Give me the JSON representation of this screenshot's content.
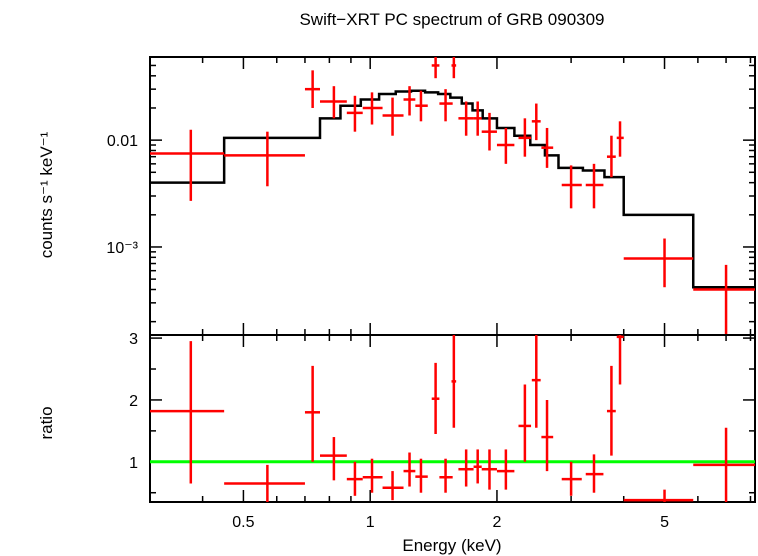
{
  "title": "Swift−XRT PC spectrum of GRB 090309",
  "chart_data": [
    {
      "type": "scatter",
      "panel": "spectrum",
      "ylabel": "counts s⁻¹ keV⁻¹",
      "yscale": "log",
      "xscale": "log",
      "xlim": [
        0.3,
        8.2
      ],
      "ylim": [
        0.00015,
        0.06
      ],
      "yticks": [
        {
          "value": 0.01,
          "label": "0.01"
        },
        {
          "value": 0.001,
          "label": "10⁻³"
        }
      ],
      "colors": {
        "data": "#ff0000",
        "model": "#000000"
      },
      "series": [
        {
          "points": [
            {
              "x": 0.375,
              "xlo": 0.3,
              "xhi": 0.45,
              "y": 0.0075,
              "ylo": 0.0027,
              "yhi": 0.0125
            },
            {
              "x": 0.57,
              "xlo": 0.45,
              "xhi": 0.7,
              "y": 0.0072,
              "ylo": 0.0037,
              "yhi": 0.012
            },
            {
              "x": 0.73,
              "xlo": 0.7,
              "xhi": 0.76,
              "y": 0.03,
              "ylo": 0.02,
              "yhi": 0.045
            },
            {
              "x": 0.82,
              "xlo": 0.76,
              "xhi": 0.88,
              "y": 0.023,
              "ylo": 0.016,
              "yhi": 0.032
            },
            {
              "x": 0.92,
              "xlo": 0.88,
              "xhi": 0.96,
              "y": 0.018,
              "ylo": 0.012,
              "yhi": 0.026
            },
            {
              "x": 1.01,
              "xlo": 0.96,
              "xhi": 1.07,
              "y": 0.02,
              "ylo": 0.014,
              "yhi": 0.028
            },
            {
              "x": 1.13,
              "xlo": 1.07,
              "xhi": 1.2,
              "y": 0.017,
              "ylo": 0.011,
              "yhi": 0.025
            },
            {
              "x": 1.24,
              "xlo": 1.2,
              "xhi": 1.28,
              "y": 0.024,
              "ylo": 0.017,
              "yhi": 0.032
            },
            {
              "x": 1.32,
              "xlo": 1.28,
              "xhi": 1.37,
              "y": 0.021,
              "ylo": 0.015,
              "yhi": 0.029
            },
            {
              "x": 1.43,
              "xlo": 1.4,
              "xhi": 1.46,
              "y": 0.05,
              "ylo": 0.038,
              "yhi": 0.063
            },
            {
              "x": 1.51,
              "xlo": 1.46,
              "xhi": 1.57,
              "y": 0.022,
              "ylo": 0.015,
              "yhi": 0.03
            },
            {
              "x": 1.58,
              "xlo": 1.56,
              "xhi": 1.6,
              "y": 0.05,
              "ylo": 0.038,
              "yhi": 0.063
            },
            {
              "x": 1.69,
              "xlo": 1.62,
              "xhi": 1.76,
              "y": 0.016,
              "ylo": 0.011,
              "yhi": 0.023
            },
            {
              "x": 1.8,
              "xlo": 1.76,
              "xhi": 1.84,
              "y": 0.016,
              "ylo": 0.011,
              "yhi": 0.023
            },
            {
              "x": 1.92,
              "xlo": 1.84,
              "xhi": 2.0,
              "y": 0.012,
              "ylo": 0.008,
              "yhi": 0.018
            },
            {
              "x": 2.1,
              "xlo": 2.0,
              "xhi": 2.2,
              "y": 0.009,
              "ylo": 0.006,
              "yhi": 0.013
            },
            {
              "x": 2.33,
              "xlo": 2.25,
              "xhi": 2.41,
              "y": 0.0105,
              "ylo": 0.007,
              "yhi": 0.016
            },
            {
              "x": 2.48,
              "xlo": 2.42,
              "xhi": 2.54,
              "y": 0.015,
              "ylo": 0.01,
              "yhi": 0.022
            },
            {
              "x": 2.63,
              "xlo": 2.55,
              "xhi": 2.72,
              "y": 0.0085,
              "ylo": 0.0055,
              "yhi": 0.013
            },
            {
              "x": 3.0,
              "xlo": 2.85,
              "xhi": 3.18,
              "y": 0.0038,
              "ylo": 0.0023,
              "yhi": 0.0058
            },
            {
              "x": 3.4,
              "xlo": 3.25,
              "xhi": 3.58,
              "y": 0.0038,
              "ylo": 0.0023,
              "yhi": 0.006
            },
            {
              "x": 3.74,
              "xlo": 3.65,
              "xhi": 3.83,
              "y": 0.007,
              "ylo": 0.0045,
              "yhi": 0.011
            },
            {
              "x": 3.92,
              "xlo": 3.85,
              "xhi": 4.0,
              "y": 0.0105,
              "ylo": 0.007,
              "yhi": 0.015
            },
            {
              "x": 5.0,
              "xlo": 4.0,
              "xhi": 5.85,
              "y": 0.00078,
              "ylo": 0.00042,
              "yhi": 0.0012
            },
            {
              "x": 7.0,
              "xlo": 5.85,
              "xhi": 8.2,
              "y": 0.0004,
              "ylo": 0.00015,
              "yhi": 0.00068
            }
          ]
        },
        {
          "style": "step",
          "edges": [
            0.3,
            0.45,
            0.7,
            0.76,
            0.85,
            0.95,
            1.05,
            1.15,
            1.25,
            1.35,
            1.45,
            1.55,
            1.65,
            1.75,
            1.85,
            2.0,
            2.2,
            2.4,
            2.6,
            2.8,
            3.2,
            3.6,
            4.0,
            5.85,
            8.2
          ],
          "values": [
            0.004,
            0.0105,
            0.0105,
            0.016,
            0.021,
            0.024,
            0.027,
            0.0285,
            0.029,
            0.028,
            0.027,
            0.025,
            0.022,
            0.019,
            0.016,
            0.013,
            0.011,
            0.009,
            0.0072,
            0.0055,
            0.0052,
            0.0045,
            0.002,
            0.00042
          ]
        }
      ]
    },
    {
      "type": "scatter",
      "panel": "ratio",
      "xlabel": "Energy (keV)",
      "ylabel": "ratio",
      "xscale": "log",
      "xlim": [
        0.3,
        8.2
      ],
      "ylim": [
        0.35,
        3.05
      ],
      "xticks": [
        {
          "value": 0.5,
          "label": "0.5"
        },
        {
          "value": 1,
          "label": "1"
        },
        {
          "value": 2,
          "label": "2"
        },
        {
          "value": 5,
          "label": "5"
        }
      ],
      "yticks": [
        {
          "value": 1,
          "label": "1"
        },
        {
          "value": 2,
          "label": "2"
        },
        {
          "value": 3,
          "label": "3"
        }
      ],
      "colors": {
        "data": "#ff0000",
        "reference": "#00ff00"
      },
      "reference_line": 1,
      "series": [
        {
          "points": [
            {
              "x": 0.375,
              "xlo": 0.3,
              "xhi": 0.45,
              "y": 1.82,
              "ylo": 0.65,
              "yhi": 2.95
            },
            {
              "x": 0.57,
              "xlo": 0.45,
              "xhi": 0.7,
              "y": 0.65,
              "ylo": 0.35,
              "yhi": 0.95
            },
            {
              "x": 0.73,
              "xlo": 0.7,
              "xhi": 0.76,
              "y": 1.8,
              "ylo": 1.0,
              "yhi": 2.55
            },
            {
              "x": 0.82,
              "xlo": 0.76,
              "xhi": 0.88,
              "y": 1.1,
              "ylo": 0.7,
              "yhi": 1.4
            },
            {
              "x": 0.92,
              "xlo": 0.88,
              "xhi": 0.96,
              "y": 0.72,
              "ylo": 0.45,
              "yhi": 1.0
            },
            {
              "x": 1.01,
              "xlo": 0.96,
              "xhi": 1.07,
              "y": 0.75,
              "ylo": 0.5,
              "yhi": 1.05
            },
            {
              "x": 1.13,
              "xlo": 1.07,
              "xhi": 1.2,
              "y": 0.58,
              "ylo": 0.38,
              "yhi": 0.85
            },
            {
              "x": 1.24,
              "xlo": 1.2,
              "xhi": 1.28,
              "y": 0.85,
              "ylo": 0.6,
              "yhi": 1.15
            },
            {
              "x": 1.32,
              "xlo": 1.28,
              "xhi": 1.37,
              "y": 0.76,
              "ylo": 0.5,
              "yhi": 1.05
            },
            {
              "x": 1.43,
              "xlo": 1.4,
              "xhi": 1.46,
              "y": 2.02,
              "ylo": 1.45,
              "yhi": 2.6
            },
            {
              "x": 1.51,
              "xlo": 1.46,
              "xhi": 1.57,
              "y": 0.75,
              "ylo": 0.5,
              "yhi": 1.05
            },
            {
              "x": 1.58,
              "xlo": 1.56,
              "xhi": 1.6,
              "y": 2.3,
              "ylo": 1.55,
              "yhi": 3.05
            },
            {
              "x": 1.69,
              "xlo": 1.62,
              "xhi": 1.76,
              "y": 0.88,
              "ylo": 0.6,
              "yhi": 1.2
            },
            {
              "x": 1.8,
              "xlo": 1.76,
              "xhi": 1.84,
              "y": 0.92,
              "ylo": 0.65,
              "yhi": 1.2
            },
            {
              "x": 1.92,
              "xlo": 1.84,
              "xhi": 2.0,
              "y": 0.88,
              "ylo": 0.55,
              "yhi": 1.2
            },
            {
              "x": 2.1,
              "xlo": 2.0,
              "xhi": 2.2,
              "y": 0.85,
              "ylo": 0.55,
              "yhi": 1.2
            },
            {
              "x": 2.33,
              "xlo": 2.25,
              "xhi": 2.41,
              "y": 1.58,
              "ylo": 1.0,
              "yhi": 2.25
            },
            {
              "x": 2.48,
              "xlo": 2.42,
              "xhi": 2.54,
              "y": 2.32,
              "ylo": 1.55,
              "yhi": 3.05
            },
            {
              "x": 2.63,
              "xlo": 2.55,
              "xhi": 2.72,
              "y": 1.4,
              "ylo": 0.85,
              "yhi": 2.0
            },
            {
              "x": 3.0,
              "xlo": 2.85,
              "xhi": 3.18,
              "y": 0.72,
              "ylo": 0.45,
              "yhi": 1.0
            },
            {
              "x": 3.4,
              "xlo": 3.25,
              "xhi": 3.58,
              "y": 0.8,
              "ylo": 0.5,
              "yhi": 1.12
            },
            {
              "x": 3.74,
              "xlo": 3.65,
              "xhi": 3.83,
              "y": 1.82,
              "ylo": 1.1,
              "yhi": 2.55
            },
            {
              "x": 3.92,
              "xlo": 3.85,
              "xhi": 4.0,
              "y": 3.02,
              "ylo": 2.25,
              "yhi": 3.05
            },
            {
              "x": 5.0,
              "xlo": 4.0,
              "xhi": 5.85,
              "y": 0.38,
              "ylo": 0.35,
              "yhi": 0.55
            },
            {
              "x": 7.0,
              "xlo": 5.85,
              "xhi": 8.2,
              "y": 0.95,
              "ylo": 0.35,
              "yhi": 1.55
            }
          ]
        }
      ]
    }
  ]
}
